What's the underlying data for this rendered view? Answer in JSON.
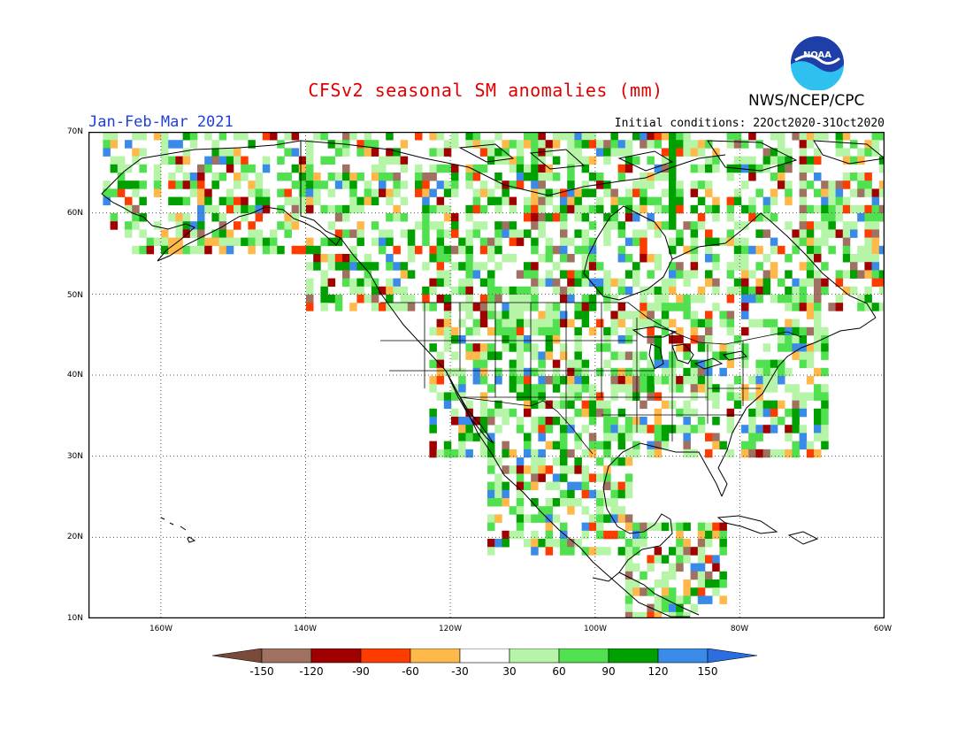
{
  "title": "CFSv2 seasonal SM anomalies (mm)",
  "season": "Jan-Feb-Mar 2021",
  "agency": "NWS/NCEP/CPC",
  "initial_conditions": "Initial conditions: 22Oct2020-31Oct2020",
  "logo_text": "NOAA",
  "lat_labels": [
    "70N",
    "60N",
    "50N",
    "40N",
    "30N",
    "20N",
    "10N"
  ],
  "lon_labels": [
    "160W",
    "140W",
    "120W",
    "100W",
    "80W",
    "60W"
  ],
  "colorbar": {
    "labels": [
      "-150",
      "-120",
      "-90",
      "-60",
      "-30",
      "30",
      "60",
      "90",
      "120",
      "150"
    ],
    "colors": [
      "#7a4a3a",
      "#a07060",
      "#a00000",
      "#ff3c00",
      "#ffb84a",
      "#ffffff",
      "#b6f5a8",
      "#50e050",
      "#00a000",
      "#3a8ae8",
      "#2a6ee0"
    ]
  },
  "chart_data": {
    "type": "heatmap",
    "title": "CFSv2 seasonal SM anomalies (mm)",
    "subtitle": "Jan-Feb-Mar 2021",
    "units": "mm",
    "xlim": [
      -170,
      -60
    ],
    "ylim": [
      10,
      70
    ],
    "grid": true,
    "bins": [
      -150,
      -120,
      -90,
      -60,
      -30,
      30,
      60,
      90,
      120,
      150
    ]
  }
}
